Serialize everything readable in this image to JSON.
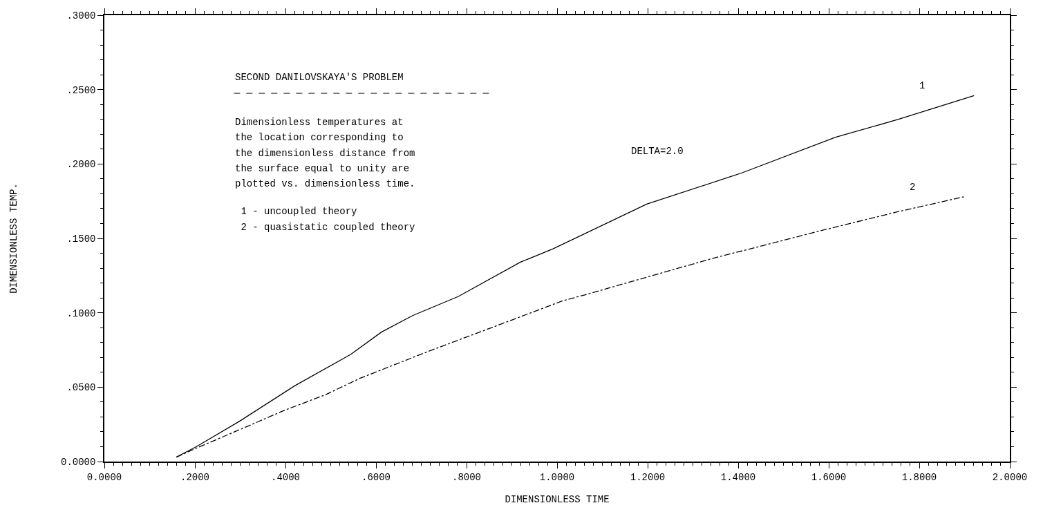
{
  "chart_data": {
    "type": "line",
    "xlabel": "DIMENSIONLESS TIME",
    "ylabel": "DIMENSIONLESS TEMP.",
    "xlim": [
      0,
      2
    ],
    "ylim": [
      0,
      0.3
    ],
    "xticks": [
      {
        "value": 0,
        "label": "0.0000"
      },
      {
        "value": 0.2,
        "label": ".2000"
      },
      {
        "value": 0.4,
        "label": ".4000"
      },
      {
        "value": 0.6,
        "label": ".6000"
      },
      {
        "value": 0.8,
        "label": ".8000"
      },
      {
        "value": 1.0,
        "label": "1.0000"
      },
      {
        "value": 1.2,
        "label": "1.2000"
      },
      {
        "value": 1.4,
        "label": "1.4000"
      },
      {
        "value": 1.6,
        "label": "1.6000"
      },
      {
        "value": 1.8,
        "label": "1.8000"
      },
      {
        "value": 2.0,
        "label": "2.0000"
      }
    ],
    "yticks": [
      {
        "value": 0,
        "label": "0.0000"
      },
      {
        "value": 0.05,
        "label": ".0500"
      },
      {
        "value": 0.1,
        "label": ".1000"
      },
      {
        "value": 0.15,
        "label": ".1500"
      },
      {
        "value": 0.2,
        "label": ".2000"
      },
      {
        "value": 0.25,
        "label": ".2500"
      },
      {
        "value": 0.3,
        "label": ".3000"
      }
    ],
    "grid": false,
    "legend": false,
    "marker": "none",
    "series": [
      {
        "name": "1",
        "color": "#000000",
        "line_style": "solid",
        "x": [
          0.159,
          0.203,
          0.298,
          0.421,
          0.544,
          0.612,
          0.68,
          0.782,
          0.919,
          0.991,
          1.198,
          1.408,
          1.615,
          1.754,
          1.921
        ],
        "values": [
          0.003,
          0.01,
          0.027,
          0.051,
          0.072,
          0.087,
          0.098,
          0.111,
          0.134,
          0.143,
          0.173,
          0.194,
          0.218,
          0.23,
          0.246
        ]
      },
      {
        "name": "2",
        "color": "#000000",
        "line_style": "dashed",
        "x": [
          0.159,
          0.203,
          0.311,
          0.394,
          0.489,
          0.565,
          0.715,
          0.864,
          1.012,
          1.061,
          1.337,
          1.58,
          1.754,
          1.899
        ],
        "values": [
          0.003,
          0.009,
          0.023,
          0.034,
          0.045,
          0.056,
          0.074,
          0.091,
          0.108,
          0.112,
          0.136,
          0.155,
          0.168,
          0.178
        ]
      }
    ],
    "annotations": [
      "SECOND DANILOVSKAYA'S PROBLEM",
      "Dimensionless temperatures at",
      "the location corresponding to",
      "the dimensionless distance from",
      "the surface equal to unity are",
      "plotted vs. dimensionless time.",
      " 1 - uncoupled theory",
      " 2 - quasistatic coupled theory",
      "DELTA=2.0"
    ]
  }
}
